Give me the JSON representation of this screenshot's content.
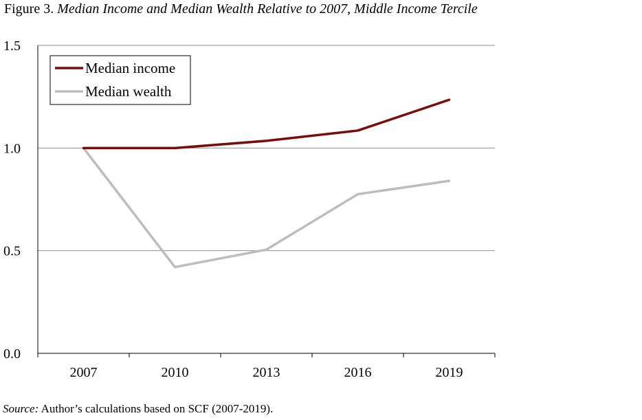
{
  "figure": {
    "label": "Figure 3.",
    "title": "Median Income and Median Wealth Relative to 2007, Middle Income Tercile"
  },
  "source": {
    "label": "Source:",
    "text": "Author’s calculations based on SCF (2007-2019)."
  },
  "chart_data": {
    "type": "line",
    "title": "",
    "xlabel": "",
    "ylabel": "",
    "categories": [
      "2007",
      "2010",
      "2013",
      "2016",
      "2019"
    ],
    "ylim": [
      0,
      1.5
    ],
    "yticks": [
      "0.0",
      "0.5",
      "1.0",
      "1.5"
    ],
    "grid": "horizontal",
    "legend_position": "top-left",
    "series": [
      {
        "name": "Median income",
        "color": "#7a0c0c",
        "values": [
          1.0,
          1.0,
          1.035,
          1.085,
          1.235
        ]
      },
      {
        "name": "Median wealth",
        "color": "#bdbdbd",
        "values": [
          1.0,
          0.42,
          0.505,
          0.775,
          0.84
        ]
      }
    ]
  }
}
